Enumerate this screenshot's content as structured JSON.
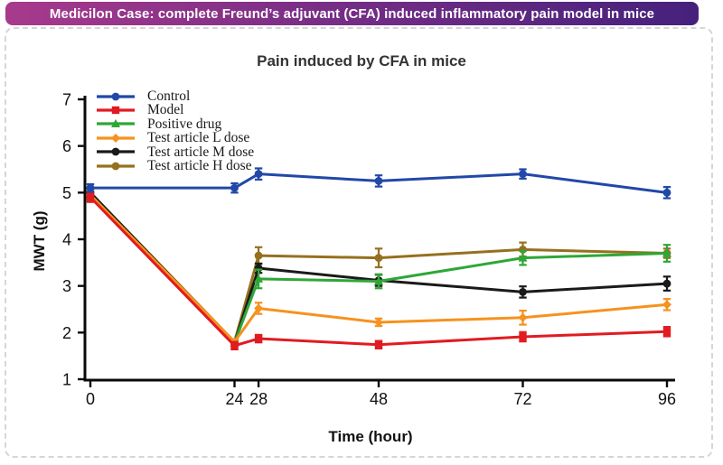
{
  "banner": {
    "text": "Medicilon Case: complete Freund’s adjuvant (CFA) induced inflammatory pain model in mice",
    "gradient_left": "#A83A8C",
    "gradient_right": "#45217C",
    "text_color": "#FFFFFF"
  },
  "card": {
    "border_color": "#D6D6D6",
    "background": "#FFFFFF"
  },
  "chart_data": {
    "type": "line",
    "title": "Pain induced by CFA in mice",
    "xlabel": "Time (hour)",
    "ylabel": "MWT (g)",
    "x": [
      0,
      24,
      28,
      48,
      72,
      96
    ],
    "xticks": [
      "0",
      "24",
      "28",
      "48",
      "72",
      "96"
    ],
    "yticks": [
      "1",
      "2",
      "3",
      "4",
      "5",
      "6",
      "7"
    ],
    "xlim": [
      0,
      96
    ],
    "ylim": [
      1,
      7
    ],
    "grid": false,
    "legend_position": "top-left",
    "axis_color": "#0a0a0a",
    "series": [
      {
        "name": "Control",
        "color": "#2148A8",
        "marker": "circle",
        "values": [
          5.1,
          5.1,
          5.4,
          5.25,
          5.4,
          5.0
        ],
        "errors": [
          0.08,
          0.1,
          0.12,
          0.12,
          0.1,
          0.12
        ]
      },
      {
        "name": "Model",
        "color": "#E11B20",
        "marker": "square",
        "values": [
          4.9,
          1.72,
          1.87,
          1.74,
          1.91,
          2.02
        ],
        "errors": [
          0.1,
          0.08,
          0.08,
          0.08,
          0.1,
          0.1
        ]
      },
      {
        "name": "Positive drug",
        "color": "#2EA737",
        "marker": "triangle",
        "values": [
          4.95,
          1.78,
          3.15,
          3.1,
          3.6,
          3.7
        ],
        "errors": [
          0.1,
          0.06,
          0.2,
          0.15,
          0.15,
          0.18
        ]
      },
      {
        "name": "Test article L dose",
        "color": "#F6921E",
        "marker": "diamond",
        "values": [
          4.95,
          1.8,
          2.52,
          2.22,
          2.32,
          2.6
        ],
        "errors": [
          0.1,
          0.06,
          0.12,
          0.08,
          0.15,
          0.12
        ]
      },
      {
        "name": "Test article M dose",
        "color": "#1A1A1A",
        "marker": "circle",
        "values": [
          5.0,
          1.78,
          3.38,
          3.12,
          2.87,
          3.05
        ],
        "errors": [
          0.1,
          0.06,
          0.1,
          0.12,
          0.12,
          0.15
        ]
      },
      {
        "name": "Test article H dose",
        "color": "#96701F",
        "marker": "circle",
        "values": [
          5.0,
          1.8,
          3.65,
          3.6,
          3.78,
          3.7
        ],
        "errors": [
          0.1,
          0.06,
          0.18,
          0.2,
          0.15,
          0.1
        ]
      }
    ]
  }
}
